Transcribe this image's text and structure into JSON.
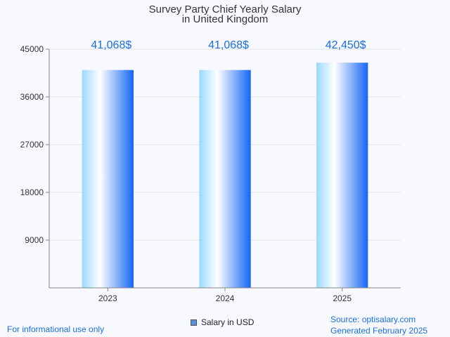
{
  "chart_data": {
    "type": "bar",
    "title": [
      "Survey Party Chief Yearly Salary",
      "in United Kingdom"
    ],
    "categories": [
      "2023",
      "2024",
      "2025"
    ],
    "series": [
      {
        "name": "Salary in USD",
        "values": [
          41068,
          41068,
          42450
        ]
      }
    ],
    "data_labels": [
      "41,068$",
      "41,068$",
      "42,450$"
    ],
    "yticks": [
      9000,
      18000,
      27000,
      36000,
      45000
    ],
    "ylim": [
      0,
      45000
    ],
    "grid": true,
    "legend_position": "bottom-center"
  },
  "colors": {
    "bar_light": "#9ad8ff",
    "bar_white": "#ffffff",
    "bar_dark": "#1466f5",
    "label": "#1a6fe0",
    "legend_swatch": "#5b8fd6"
  },
  "footer": {
    "disclaimer": "For informational use only",
    "source": "Source: optisalary.com",
    "generated": "Generated February 2025"
  }
}
